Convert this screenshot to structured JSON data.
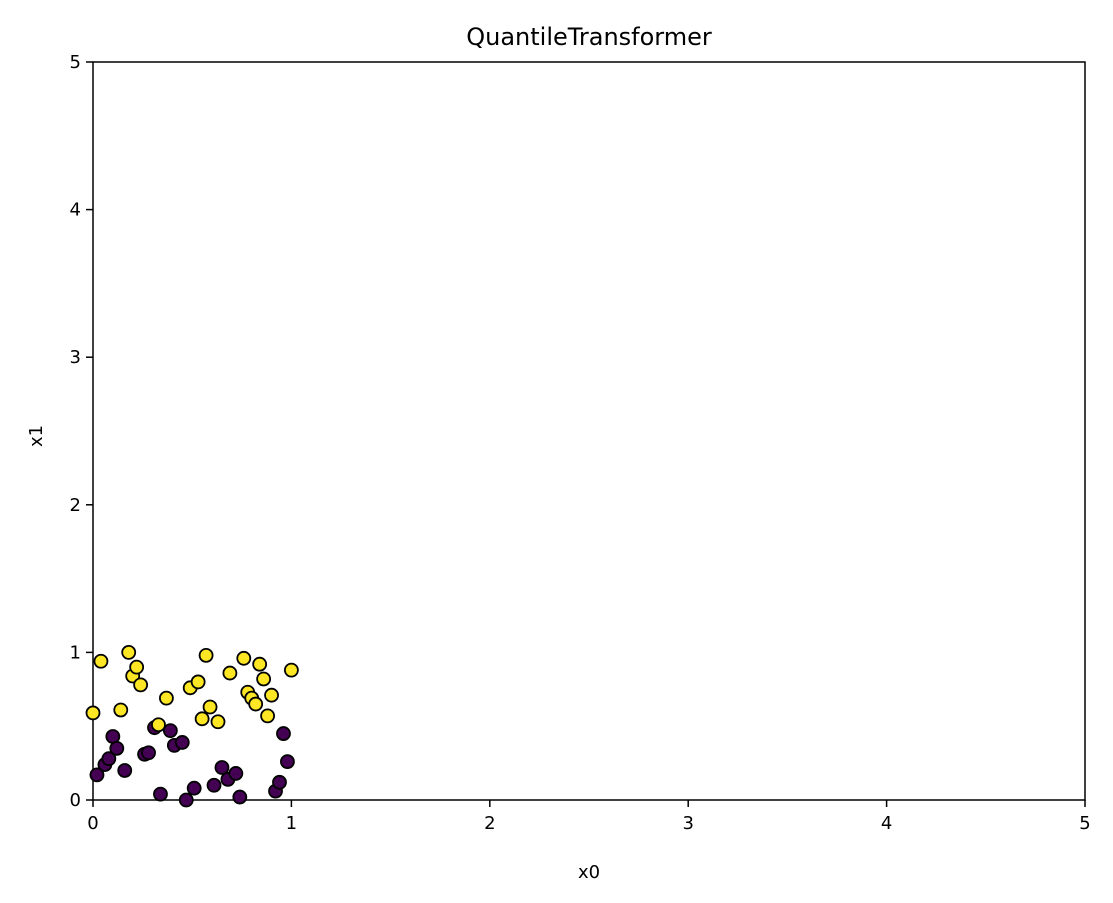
{
  "chart_data": {
    "type": "scatter",
    "title": "QuantileTransformer",
    "xlabel": "x0",
    "ylabel": "x1",
    "xlim": [
      0,
      5
    ],
    "ylim": [
      0,
      5
    ],
    "xticks": [
      "0",
      "1",
      "2",
      "3",
      "4",
      "5"
    ],
    "yticks": [
      "0",
      "1",
      "2",
      "3",
      "4",
      "5"
    ],
    "grid": false,
    "colors": {
      "class0": "#440154",
      "class1": "#fde725",
      "edge": "#000000"
    },
    "series": [
      {
        "class": 0,
        "points": [
          [
            0.02,
            0.17
          ],
          [
            0.06,
            0.24
          ],
          [
            0.08,
            0.28
          ],
          [
            0.1,
            0.43
          ],
          [
            0.12,
            0.35
          ],
          [
            0.16,
            0.2
          ],
          [
            0.26,
            0.31
          ],
          [
            0.28,
            0.32
          ],
          [
            0.31,
            0.49
          ],
          [
            0.34,
            0.04
          ],
          [
            0.39,
            0.47
          ],
          [
            0.41,
            0.37
          ],
          [
            0.45,
            0.39
          ],
          [
            0.47,
            0.0
          ],
          [
            0.51,
            0.08
          ],
          [
            0.61,
            0.1
          ],
          [
            0.65,
            0.22
          ],
          [
            0.68,
            0.14
          ],
          [
            0.72,
            0.18
          ],
          [
            0.74,
            0.02
          ],
          [
            0.92,
            0.06
          ],
          [
            0.94,
            0.12
          ],
          [
            0.96,
            0.45
          ],
          [
            0.98,
            0.26
          ]
        ]
      },
      {
        "class": 1,
        "points": [
          [
            0.0,
            0.59
          ],
          [
            0.04,
            0.94
          ],
          [
            0.14,
            0.61
          ],
          [
            0.18,
            1.0
          ],
          [
            0.2,
            0.84
          ],
          [
            0.22,
            0.9
          ],
          [
            0.24,
            0.78
          ],
          [
            0.33,
            0.51
          ],
          [
            0.37,
            0.69
          ],
          [
            0.49,
            0.76
          ],
          [
            0.53,
            0.8
          ],
          [
            0.55,
            0.55
          ],
          [
            0.57,
            0.98
          ],
          [
            0.59,
            0.63
          ],
          [
            0.63,
            0.53
          ],
          [
            0.69,
            0.86
          ],
          [
            0.76,
            0.96
          ],
          [
            0.78,
            0.73
          ],
          [
            0.8,
            0.69
          ],
          [
            0.82,
            0.65
          ],
          [
            0.84,
            0.92
          ],
          [
            0.86,
            0.82
          ],
          [
            0.88,
            0.57
          ],
          [
            0.9,
            0.71
          ],
          [
            1.0,
            0.88
          ]
        ]
      }
    ]
  }
}
